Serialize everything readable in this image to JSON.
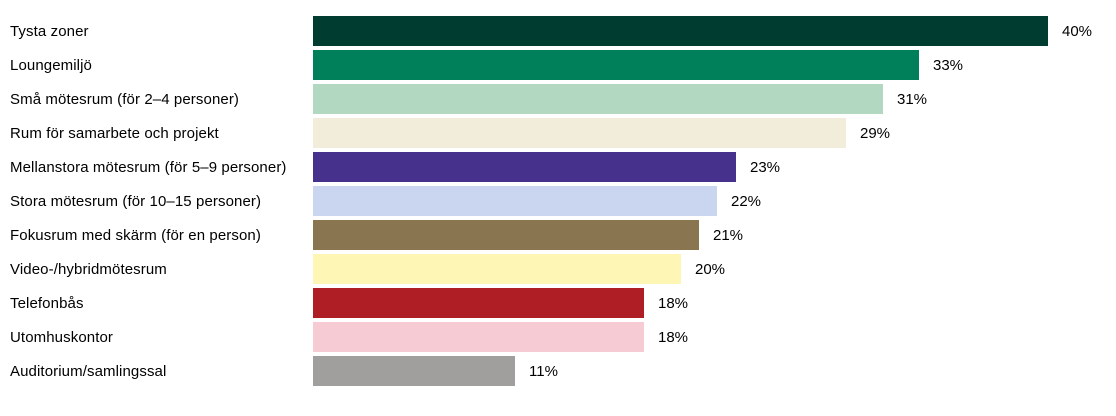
{
  "chart_data": {
    "type": "bar",
    "orientation": "horizontal",
    "categories": [
      "Tysta zoner",
      "Loungemiljö",
      "Små mötesrum (för 2–4 personer)",
      "Rum för samarbete och projekt",
      "Mellanstora mötesrum (för 5–9 personer)",
      "Stora mötesrum (för 10–15 personer)",
      "Fokusrum med skärm (för en person)",
      "Video-/hybridmötesrum",
      "Telefonbås",
      "Utomhuskontor",
      "Auditorium/samlingssal"
    ],
    "values": [
      40,
      33,
      31,
      29,
      23,
      22,
      21,
      20,
      18,
      18,
      11
    ],
    "value_labels": [
      "40%",
      "33%",
      "31%",
      "29%",
      "23%",
      "22%",
      "21%",
      "20%",
      "18%",
      "18%",
      "11%"
    ],
    "colors": [
      "#003D30",
      "#00805A",
      "#B2D8C2",
      "#F2ECDA",
      "#46318C",
      "#CAD5EF",
      "#897650",
      "#FDF6B5",
      "#AE1E24",
      "#F7CBD3",
      "#A09F9D"
    ],
    "xlim": [
      0,
      40
    ],
    "grid": false,
    "legend": "none",
    "background": "#FFFFFF",
    "text_color": "#000000"
  }
}
